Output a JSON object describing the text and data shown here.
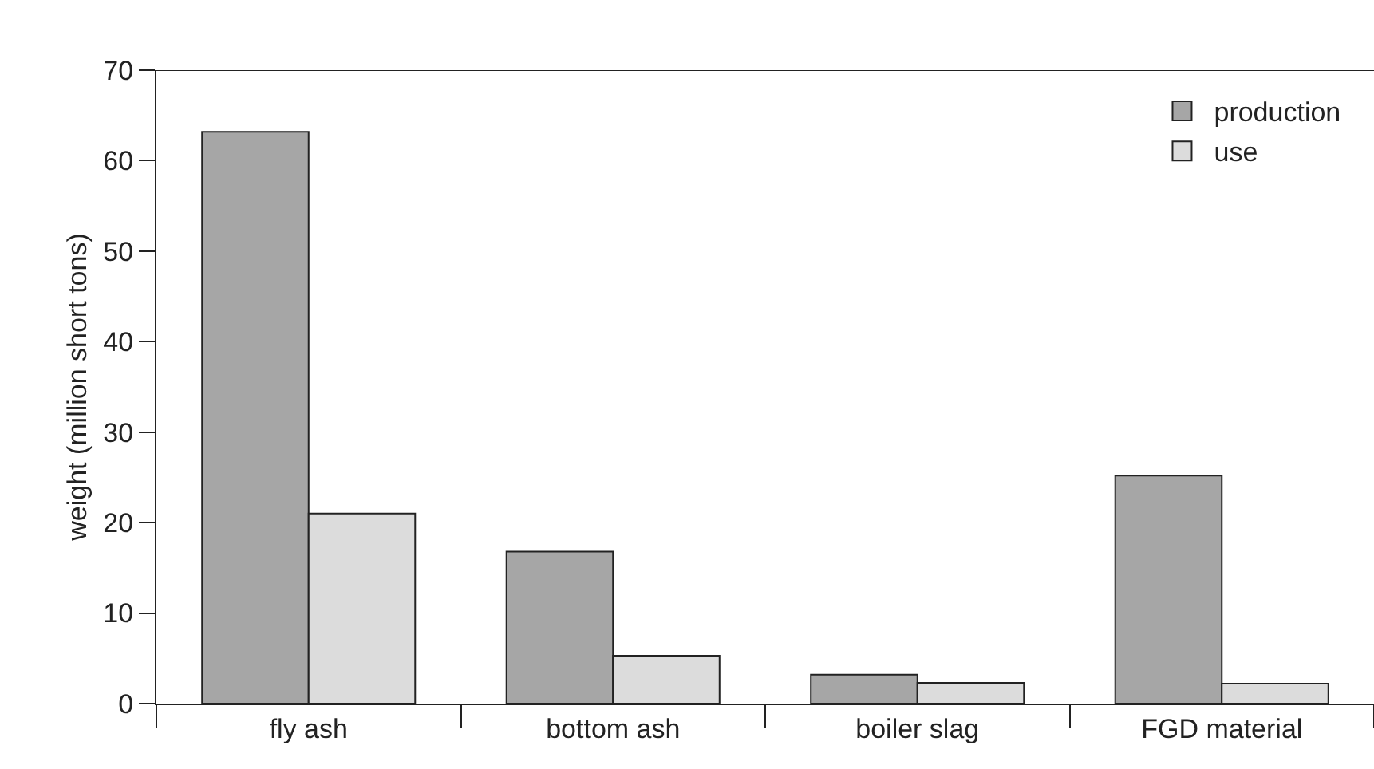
{
  "chart_data": {
    "type": "bar",
    "ylabel": "weight (million short tons)",
    "categories": [
      "fly ash",
      "bottom ash",
      "boiler slag",
      "FGD material"
    ],
    "series": [
      {
        "name": "production",
        "color": "#a6a6a6",
        "values": [
          63.2,
          16.8,
          3.2,
          25.2
        ]
      },
      {
        "name": "use",
        "color": "#dcdcdc",
        "values": [
          21.0,
          5.3,
          2.3,
          2.2
        ]
      }
    ],
    "ylim": [
      0,
      70
    ],
    "yticks": [
      0,
      10,
      20,
      30,
      40,
      50,
      60,
      70
    ],
    "grid": false,
    "legend": "top right"
  }
}
